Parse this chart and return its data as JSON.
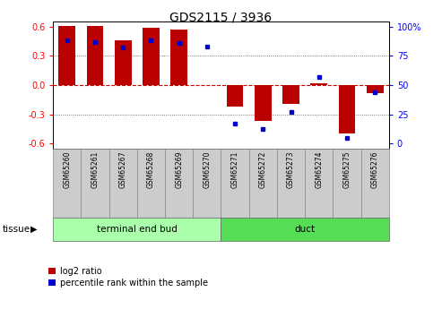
{
  "title": "GDS2115 / 3936",
  "samples": [
    "GSM65260",
    "GSM65261",
    "GSM65267",
    "GSM65268",
    "GSM65269",
    "GSM65270",
    "GSM65271",
    "GSM65272",
    "GSM65273",
    "GSM65274",
    "GSM65275",
    "GSM65276"
  ],
  "log2_ratio": [
    0.61,
    0.61,
    0.46,
    0.59,
    0.57,
    0.0,
    -0.22,
    -0.37,
    -0.19,
    0.02,
    -0.5,
    -0.08
  ],
  "percentile_rank": [
    88,
    87,
    82,
    88,
    86,
    83,
    17,
    12,
    27,
    57,
    5,
    44
  ],
  "groups": [
    {
      "label": "terminal end bud",
      "start": 0,
      "end": 6,
      "color": "#AAFFAA"
    },
    {
      "label": "duct",
      "start": 6,
      "end": 12,
      "color": "#55DD55"
    }
  ],
  "ylim": [
    -0.65,
    0.65
  ],
  "yticks_left": [
    -0.6,
    -0.3,
    0.0,
    0.3,
    0.6
  ],
  "yticks_right": [
    0,
    25,
    50,
    75,
    100
  ],
  "bar_color": "#BB0000",
  "dot_color": "#0000CC",
  "zero_line_color": "#CC0000",
  "grid_color": "#555555",
  "bg_color": "#FFFFFF",
  "bar_width": 0.6
}
